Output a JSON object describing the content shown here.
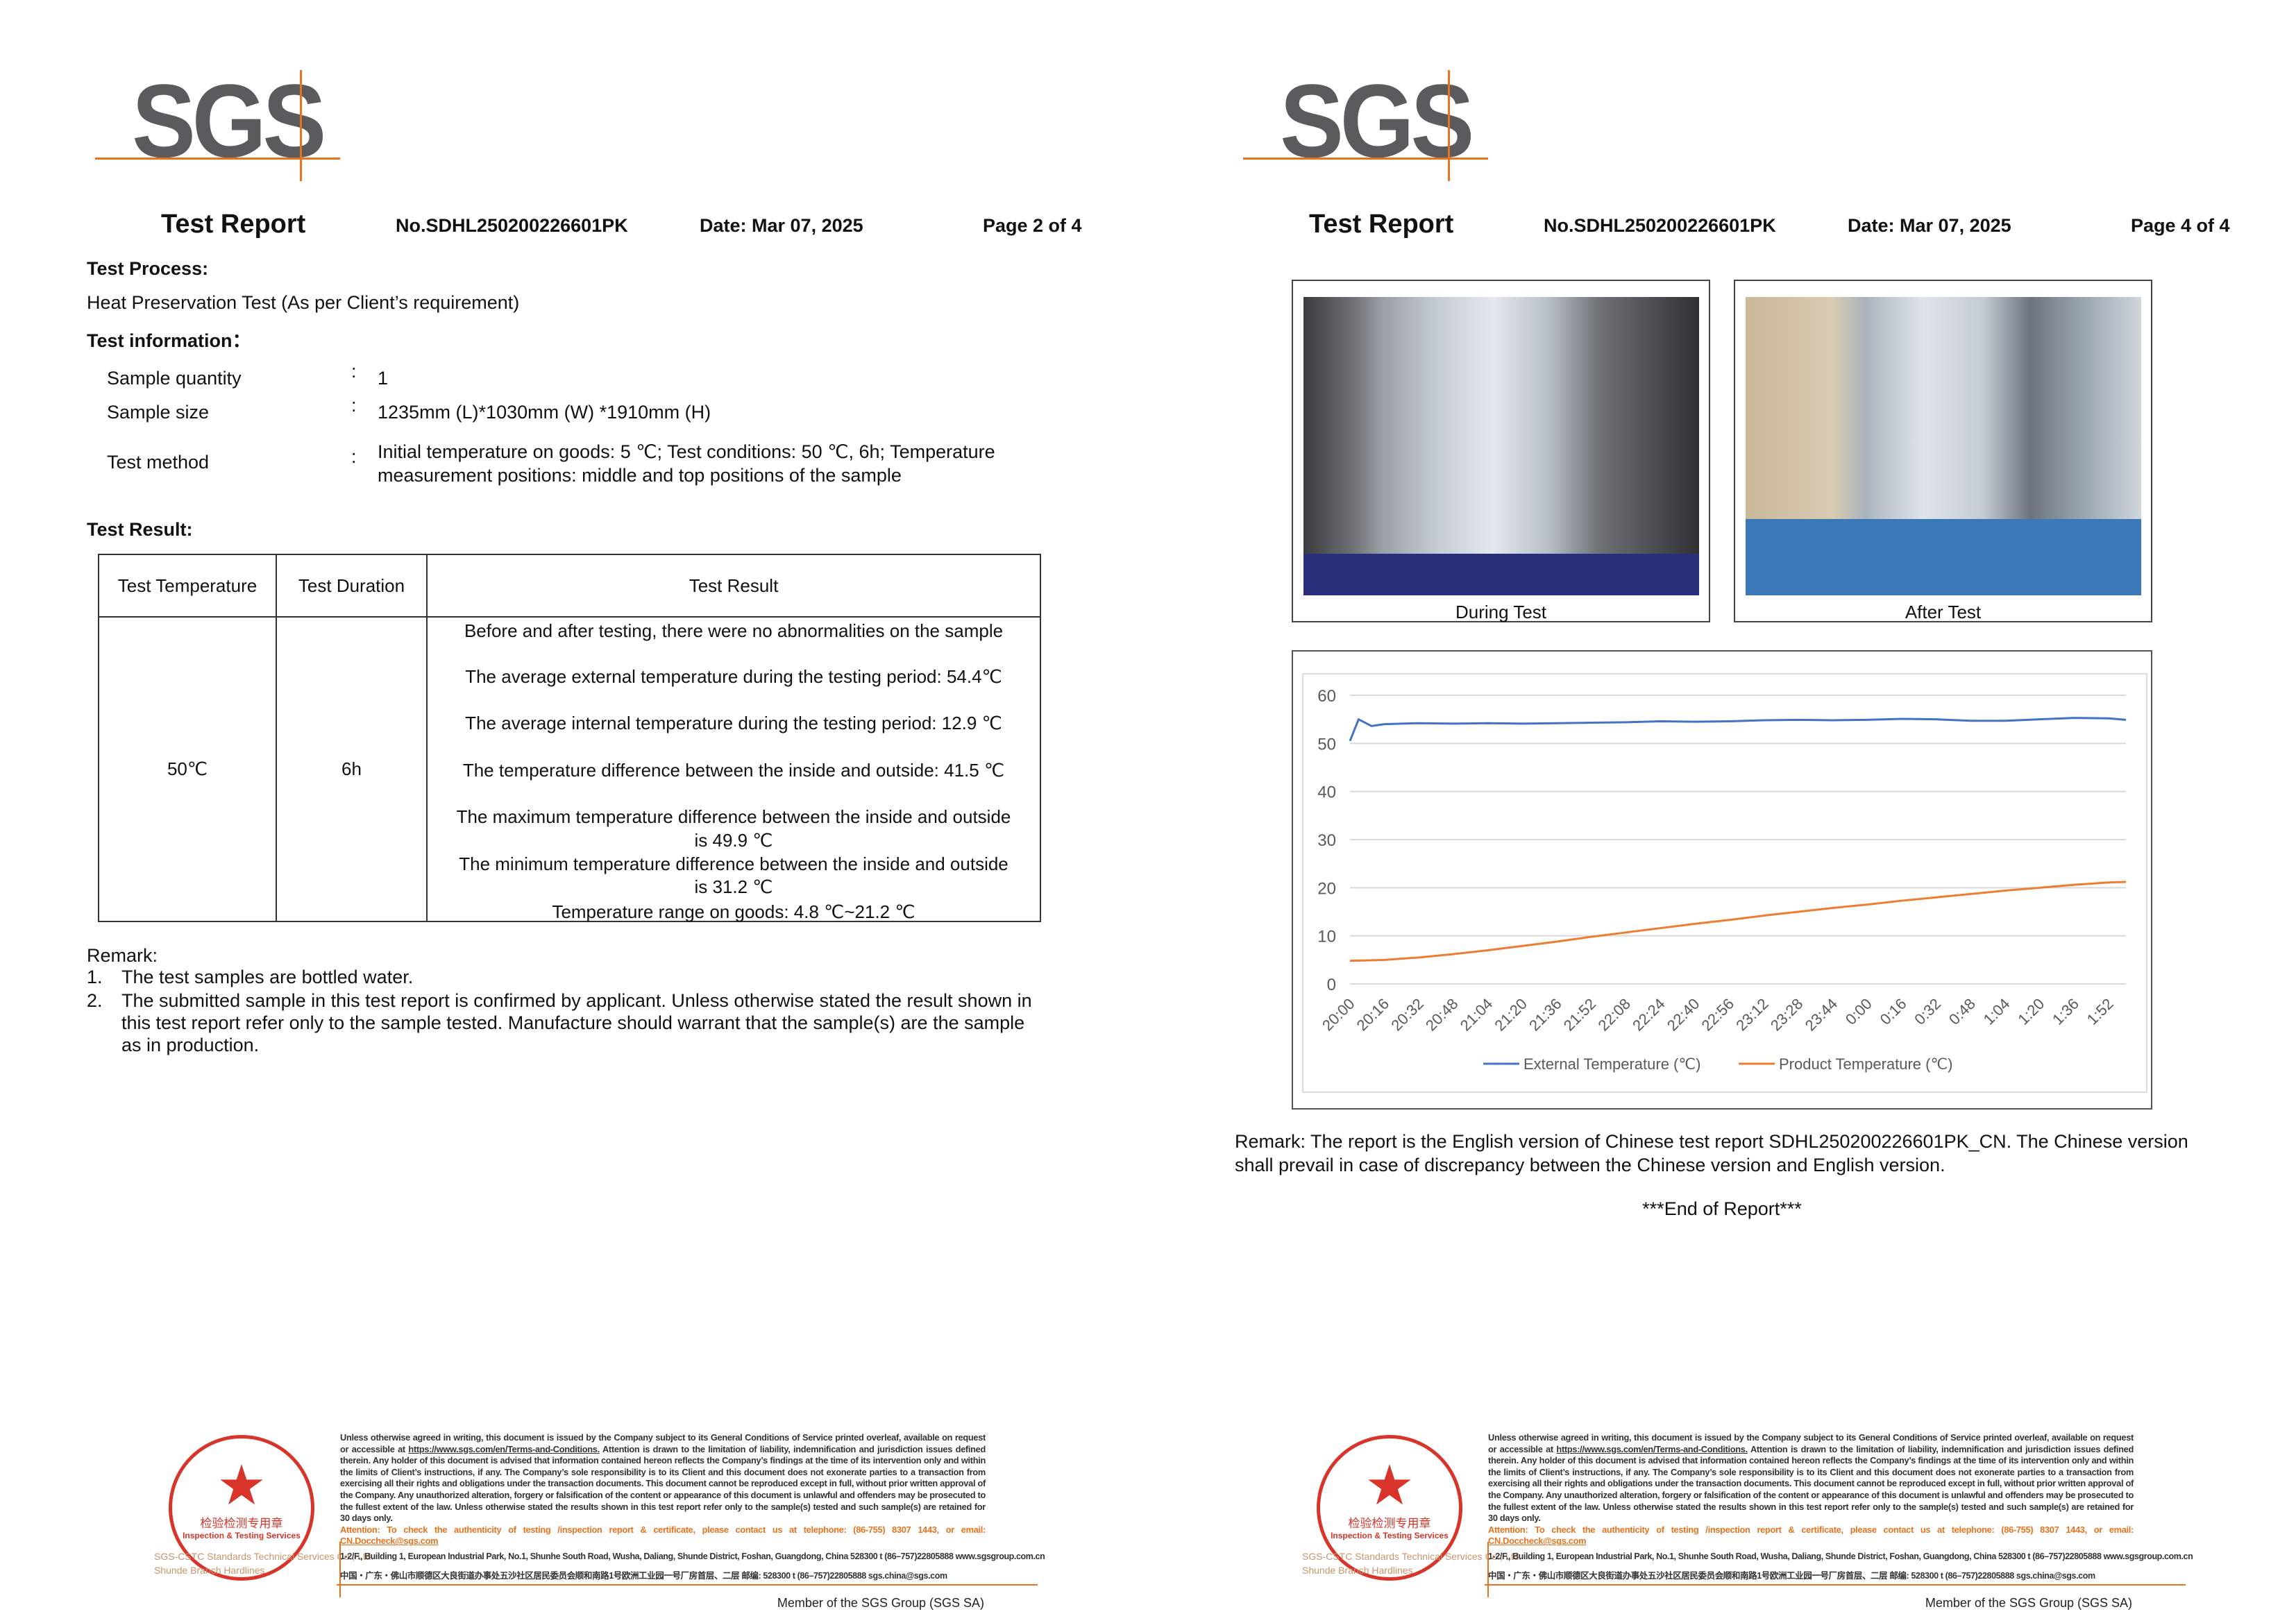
{
  "logo": "SGS",
  "header": {
    "title": "Test Report",
    "number": "No.SDHL250200226601PK",
    "date": "Date: Mar 07, 2025"
  },
  "page2": {
    "page_label": "Page 2 of 4",
    "process_heading": "Test Process:",
    "process_text": "Heat Preservation Test (As per Client’s requirement)",
    "info_heading": "Test information：",
    "info": [
      {
        "label": "Sample quantity",
        "colon": ":",
        "value": "1"
      },
      {
        "label": "Sample size",
        "colon": ":",
        "value": "1235mm (L)*1030mm (W) *1910mm (H)"
      },
      {
        "label": "Test method",
        "colon": ":",
        "value": "Initial temperature on goods: 5 ℃; Test conditions: 50 ℃, 6h; Temperature",
        "value2": "measurement positions: middle and top positions of the sample"
      }
    ],
    "result_heading": "Test Result:",
    "table": {
      "headers": [
        "Test Temperature",
        "Test Duration",
        "Test Result"
      ],
      "temperature": "50℃",
      "duration": "6h",
      "results": [
        "Before and after testing, there were no abnormalities on the sample",
        "The average external temperature during the testing period: 54.4℃",
        "The average internal temperature during the testing period: 12.9 ℃",
        "The temperature difference between the inside and outside: 41.5 ℃",
        "The maximum temperature difference between the inside and outside",
        "is 49.9 ℃",
        "The minimum temperature difference between the inside and outside",
        "is 31.2 ℃",
        "Temperature range on goods: 4.8 ℃~21.2 ℃"
      ]
    },
    "remark_heading": "Remark:",
    "remarks": [
      {
        "num": "1.",
        "lines": [
          "The test samples are bottled water."
        ]
      },
      {
        "num": "2.",
        "lines": [
          "The submitted sample in this test report is confirmed by applicant. Unless otherwise stated the result shown in",
          "this test report refer only to the sample tested. Manufacture should warrant that the sample(s) are the sample",
          "as in production."
        ]
      }
    ]
  },
  "page4": {
    "page_label": "Page 4 of 4",
    "photos": [
      {
        "caption": "During Test"
      },
      {
        "caption": "After Test"
      }
    ],
    "remark_lines": [
      "Remark: The report is the English version of Chinese test report SDHL250200226601PK_CN. The Chinese version",
      "shall prevail in case of discrepancy between the Chinese version and English version."
    ],
    "end": "***End of Report***"
  },
  "chart_data": {
    "type": "line",
    "ylim": [
      0,
      60
    ],
    "yticks": [
      0,
      10,
      20,
      30,
      40,
      50,
      60
    ],
    "xticks": [
      "20:00",
      "20:16",
      "20:32",
      "20:48",
      "21:04",
      "21:20",
      "21:36",
      "21:52",
      "22:08",
      "22:24",
      "22:40",
      "22:56",
      "23:12",
      "23:28",
      "23:44",
      "0:00",
      "0:16",
      "0:32",
      "0:48",
      "1:04",
      "1:20",
      "1:36",
      "1:52"
    ],
    "grid": true,
    "legend": "bottom",
    "series": [
      {
        "name": "External Temperature (℃)",
        "color": "#4472c4",
        "x": [
          "20:00",
          "20:04",
          "20:10",
          "20:16",
          "20:32",
          "20:48",
          "21:04",
          "21:20",
          "21:36",
          "21:52",
          "22:08",
          "22:24",
          "22:40",
          "22:56",
          "23:12",
          "23:28",
          "23:44",
          "0:00",
          "0:16",
          "0:32",
          "0:48",
          "1:04",
          "1:20",
          "1:36",
          "1:52",
          "2:00"
        ],
        "y": [
          50.5,
          55.0,
          53.6,
          54.0,
          54.2,
          54.1,
          54.2,
          54.1,
          54.2,
          54.3,
          54.4,
          54.6,
          54.5,
          54.6,
          54.8,
          54.9,
          54.8,
          54.9,
          55.1,
          55.0,
          54.7,
          54.7,
          55.0,
          55.3,
          55.2,
          54.9
        ]
      },
      {
        "name": "Product Temperature (℃)",
        "color": "#ed7d31",
        "x": [
          "20:00",
          "20:16",
          "20:32",
          "20:48",
          "21:04",
          "21:20",
          "21:36",
          "21:52",
          "22:08",
          "22:24",
          "22:40",
          "22:56",
          "23:12",
          "23:28",
          "23:44",
          "0:00",
          "0:16",
          "0:32",
          "0:48",
          "1:04",
          "1:20",
          "1:36",
          "1:52",
          "2:00"
        ],
        "y": [
          4.8,
          5.0,
          5.5,
          6.2,
          7.0,
          7.9,
          8.8,
          9.8,
          10.7,
          11.6,
          12.5,
          13.3,
          14.2,
          15.0,
          15.8,
          16.5,
          17.3,
          18.0,
          18.7,
          19.4,
          20.0,
          20.6,
          21.1,
          21.2
        ]
      }
    ]
  },
  "footer": {
    "terms_1": "Unless otherwise agreed in writing, this document is issued by the Company subject to its General Conditions of Service printed overleaf, available on request or accessible at ",
    "terms_link": "https://www.sgs.com/en/Terms-and-Conditions.",
    "terms_2": " Attention is drawn to the limitation of liability, indemnification and jurisdiction issues defined therein. Any holder of this document is advised that information contained hereon reflects the Company’s findings at the time of its intervention only and within the limits of Client’s instructions, if any. The Company’s sole responsibility is to its Client and this document does not exonerate parties to a transaction from exercising all their rights and obligations under the transaction documents. This document cannot be reproduced except in full, without prior written approval of the Company. Any unauthorized alteration, forgery or falsification of the content or appearance of this document is unlawful and offenders may be prosecuted to the fullest extent of the law. Unless otherwise stated the results shown in this test report refer only to the sample(s) tested and such sample(s) are retained for 30 days only.",
    "attention": "Attention: To check the authenticity of testing /inspection report & certificate, please contact us at telephone: (86-755) 8307 1443, or email: ",
    "attention_email": "CN.Doccheck@sgs.com",
    "address_en": "1-2/F., Building 1, European Industrial Park, No.1, Shunhe South Road, Wusha, Daliang, Shunde District, Foshan, Guangdong, China  528300   t (86–757)22805888   www.sgsgroup.com.cn",
    "address_cn": "中国・广东・佛山市顺德区大良街道办事处五沙社区居民委员会顺和南路1号欧洲工业园一号厂房首层、二层   邮编: 528300   t (86–757)22805888   sgs.china@sgs.com",
    "member": "Member of the SGS Group (SGS SA)",
    "company": "SGS-CSTC Standards Technical Services Co., Ltd.",
    "branch": "Shunde Branch Hardlines",
    "stamp_cn": "检验检测专用章",
    "stamp_en": "Inspection & Testing Services"
  }
}
